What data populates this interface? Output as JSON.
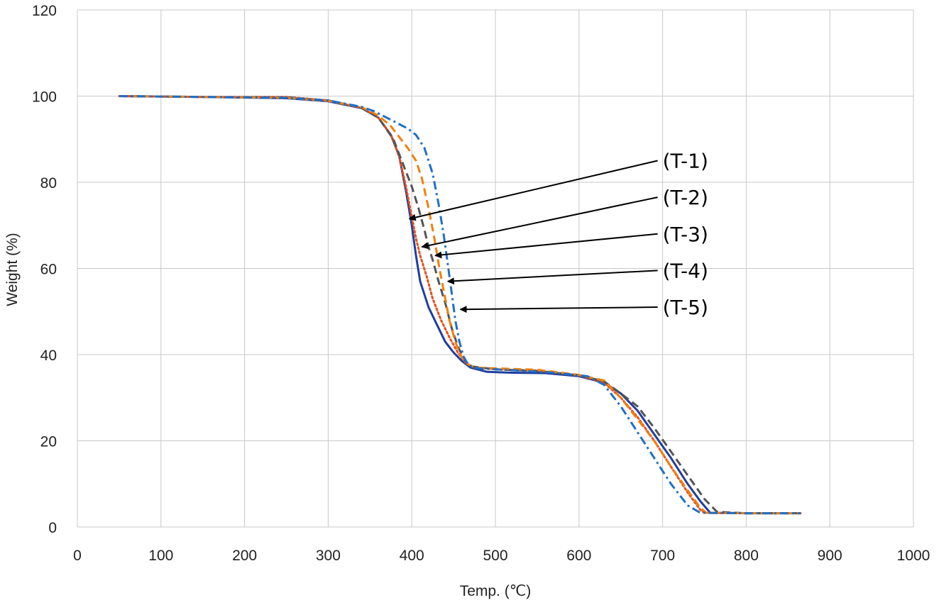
{
  "chart_data": {
    "type": "line",
    "title": "",
    "xlabel": "Temp. (℃)",
    "ylabel": "Weight (%)",
    "xlim": [
      0,
      1000
    ],
    "ylim": [
      0,
      120
    ],
    "x_ticks": [
      0,
      100,
      200,
      300,
      400,
      500,
      600,
      700,
      800,
      900,
      1000
    ],
    "y_ticks": [
      0,
      20,
      40,
      60,
      80,
      100,
      120
    ],
    "grid": true,
    "legend": "none",
    "series": [
      {
        "color": "#1f3f9f",
        "dash": "solid",
        "points": [
          [
            50,
            100
          ],
          [
            150,
            99.8
          ],
          [
            250,
            99.5
          ],
          [
            300,
            98.8
          ],
          [
            340,
            97.2
          ],
          [
            360,
            95
          ],
          [
            375,
            91
          ],
          [
            385,
            86
          ],
          [
            393,
            78
          ],
          [
            400,
            70
          ],
          [
            405,
            63
          ],
          [
            410,
            57
          ],
          [
            420,
            51
          ],
          [
            430,
            47
          ],
          [
            440,
            43
          ],
          [
            450,
            40.5
          ],
          [
            460,
            38.5
          ],
          [
            470,
            37
          ],
          [
            490,
            36
          ],
          [
            520,
            35.8
          ],
          [
            560,
            35.7
          ],
          [
            600,
            35
          ],
          [
            630,
            33.5
          ],
          [
            650,
            31
          ],
          [
            670,
            27
          ],
          [
            690,
            21.5
          ],
          [
            710,
            16
          ],
          [
            730,
            10
          ],
          [
            745,
            6
          ],
          [
            757,
            3.3
          ],
          [
            800,
            3.2
          ],
          [
            865,
            3.2
          ]
        ]
      },
      {
        "color": "#e8501a",
        "dash": "dotted",
        "points": [
          [
            50,
            100
          ],
          [
            150,
            99.8
          ],
          [
            250,
            99.8
          ],
          [
            300,
            99
          ],
          [
            340,
            97.3
          ],
          [
            360,
            95
          ],
          [
            375,
            91
          ],
          [
            385,
            86
          ],
          [
            393,
            79
          ],
          [
            400,
            72
          ],
          [
            405,
            67
          ],
          [
            410,
            63
          ],
          [
            418,
            58
          ],
          [
            425,
            53
          ],
          [
            435,
            48
          ],
          [
            445,
            44
          ],
          [
            455,
            40.5
          ],
          [
            465,
            38
          ],
          [
            475,
            37
          ],
          [
            500,
            36.6
          ],
          [
            550,
            36.3
          ],
          [
            600,
            35.2
          ],
          [
            630,
            33.5
          ],
          [
            650,
            30
          ],
          [
            670,
            25.5
          ],
          [
            690,
            20
          ],
          [
            710,
            14
          ],
          [
            730,
            8
          ],
          [
            745,
            4
          ],
          [
            750,
            3.3
          ],
          [
            800,
            3.2
          ],
          [
            865,
            3.2
          ]
        ]
      },
      {
        "color": "#555555",
        "dash": "dashed",
        "points": [
          [
            50,
            100
          ],
          [
            150,
            99.8
          ],
          [
            250,
            99.7
          ],
          [
            300,
            99
          ],
          [
            340,
            97.3
          ],
          [
            360,
            95
          ],
          [
            378,
            90
          ],
          [
            390,
            84
          ],
          [
            400,
            79
          ],
          [
            408,
            74
          ],
          [
            415,
            69
          ],
          [
            420,
            65
          ],
          [
            425,
            62
          ],
          [
            432,
            57
          ],
          [
            440,
            52
          ],
          [
            448,
            46
          ],
          [
            455,
            42
          ],
          [
            462,
            39
          ],
          [
            470,
            37.3
          ],
          [
            500,
            36.6
          ],
          [
            550,
            36.2
          ],
          [
            600,
            35.2
          ],
          [
            630,
            33.8
          ],
          [
            650,
            31
          ],
          [
            670,
            28
          ],
          [
            690,
            23
          ],
          [
            710,
            17.5
          ],
          [
            730,
            12
          ],
          [
            750,
            6.5
          ],
          [
            765,
            3.5
          ],
          [
            800,
            3.2
          ],
          [
            865,
            3.2
          ]
        ]
      },
      {
        "color": "#f0800a",
        "dash": "dashed",
        "points": [
          [
            50,
            100
          ],
          [
            150,
            99.8
          ],
          [
            250,
            99.6
          ],
          [
            300,
            98.9
          ],
          [
            340,
            97.4
          ],
          [
            360,
            95.5
          ],
          [
            375,
            93
          ],
          [
            385,
            90.5
          ],
          [
            395,
            88
          ],
          [
            405,
            85
          ],
          [
            412,
            81
          ],
          [
            420,
            74
          ],
          [
            427,
            67
          ],
          [
            433,
            60
          ],
          [
            438,
            55
          ],
          [
            445,
            48
          ],
          [
            452,
            43
          ],
          [
            458,
            40
          ],
          [
            465,
            38
          ],
          [
            475,
            37
          ],
          [
            500,
            36.8
          ],
          [
            550,
            36.5
          ],
          [
            600,
            35.3
          ],
          [
            630,
            34
          ],
          [
            650,
            30
          ],
          [
            670,
            25
          ],
          [
            690,
            20
          ],
          [
            710,
            14
          ],
          [
            730,
            8.5
          ],
          [
            745,
            4.5
          ],
          [
            752,
            3.3
          ],
          [
            800,
            3.2
          ],
          [
            865,
            3.2
          ]
        ]
      },
      {
        "color": "#1f6fc8",
        "dash": "dashdot",
        "points": [
          [
            50,
            100
          ],
          [
            150,
            99.8
          ],
          [
            250,
            99.6
          ],
          [
            300,
            99
          ],
          [
            340,
            97.5
          ],
          [
            355,
            96.5
          ],
          [
            370,
            95
          ],
          [
            385,
            93.5
          ],
          [
            395,
            92.5
          ],
          [
            405,
            91
          ],
          [
            415,
            88
          ],
          [
            425,
            82
          ],
          [
            432,
            75
          ],
          [
            438,
            68
          ],
          [
            443,
            61
          ],
          [
            448,
            54
          ],
          [
            452,
            48
          ],
          [
            457,
            43
          ],
          [
            462,
            39.5
          ],
          [
            468,
            37.5
          ],
          [
            480,
            36.8
          ],
          [
            520,
            36.4
          ],
          [
            570,
            35.8
          ],
          [
            610,
            35
          ],
          [
            630,
            33
          ],
          [
            650,
            28
          ],
          [
            670,
            22
          ],
          [
            690,
            16
          ],
          [
            710,
            10
          ],
          [
            730,
            5
          ],
          [
            745,
            3.3
          ],
          [
            800,
            3.2
          ],
          [
            865,
            3.2
          ]
        ]
      }
    ],
    "annotations": [
      {
        "label": "(T-1)",
        "text_at": [
          700,
          87
        ],
        "arrow_to": [
          397,
          71.5
        ]
      },
      {
        "label": "(T-2)",
        "text_at": [
          700,
          78.5
        ],
        "arrow_to": [
          412,
          65
        ]
      },
      {
        "label": "(T-3)",
        "text_at": [
          700,
          70
        ],
        "arrow_to": [
          428,
          63
        ]
      },
      {
        "label": "(T-4)",
        "text_at": [
          700,
          61.5
        ],
        "arrow_to": [
          443,
          57
        ]
      },
      {
        "label": "(T-5)",
        "text_at": [
          700,
          53
        ],
        "arrow_to": [
          458,
          50.5
        ]
      }
    ]
  }
}
